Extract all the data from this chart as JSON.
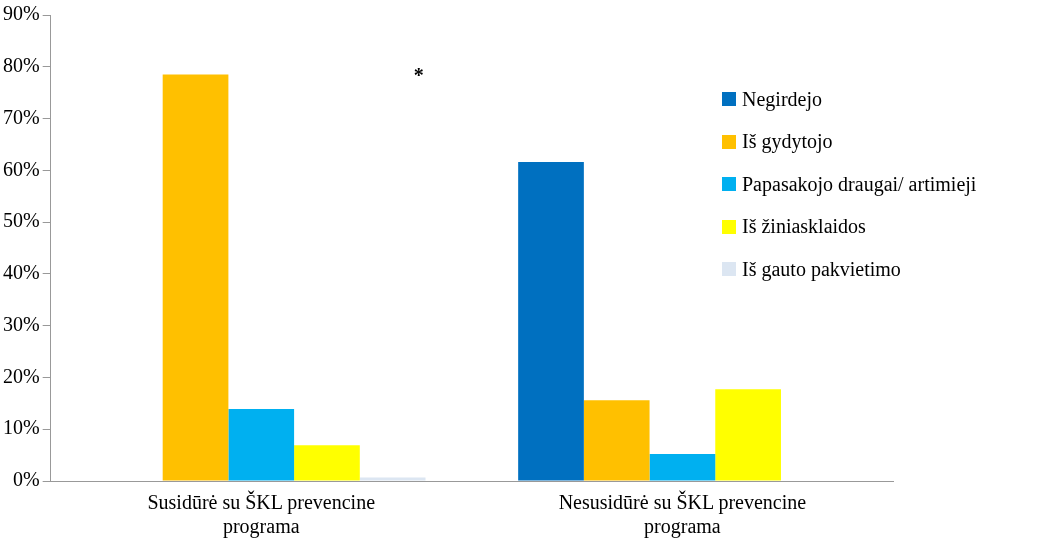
{
  "chart_data": {
    "type": "bar",
    "categories": [
      "Susidūrė su ŠKL prevencine programa",
      "Nesusidūrė su ŠKL prevencine programa"
    ],
    "series": [
      {
        "name": "Negirdejo",
        "color": "#0070c0",
        "values": [
          0,
          61.6
        ]
      },
      {
        "name": "Iš gydytojo",
        "color": "#ffc000",
        "values": [
          78.5,
          15.6
        ]
      },
      {
        "name": "Papasakojo draugai/ artimieji",
        "color": "#00b0f0",
        "values": [
          13.9,
          5.2
        ]
      },
      {
        "name": "Iš žiniasklaidos",
        "color": "#ffff00",
        "values": [
          6.9,
          17.7
        ]
      },
      {
        "name": "Iš gauto pakvietimo",
        "color": "#dce6f2",
        "values": [
          0.7,
          0
        ]
      }
    ],
    "ylim": [
      0,
      90
    ],
    "yticks": [
      {
        "value": 0,
        "label": "0%"
      },
      {
        "value": 10,
        "label": "10%"
      },
      {
        "value": 20,
        "label": "20%"
      },
      {
        "value": 30,
        "label": "30%"
      },
      {
        "value": 40,
        "label": "40%"
      },
      {
        "value": 50,
        "label": "50%"
      },
      {
        "value": 60,
        "label": "60%"
      },
      {
        "value": 70,
        "label": "70%"
      },
      {
        "value": 80,
        "label": "80%"
      },
      {
        "value": 90,
        "label": "90%"
      }
    ],
    "annotations": [
      "*"
    ],
    "grid": false,
    "legend": "right"
  }
}
